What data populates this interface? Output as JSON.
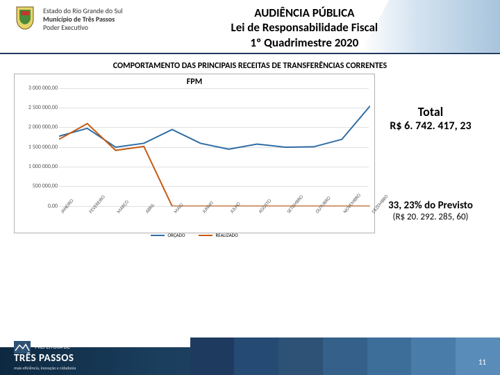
{
  "header": {
    "org_line1": "Estado do Rio Grande do Sul",
    "org_line2": "Município de Três Passos",
    "org_line3": "Poder Executivo",
    "title1": "AUDIÊNCIA PÚBLICA",
    "title2": "Lei de Responsabilidade Fiscal",
    "title3": "1º Quadrimestre 2020"
  },
  "section_title": "COMPORTAMENTO DAS PRINCIPAIS RECEITAS DE TRANSFERÊNCIAS CORRENTES",
  "chart": {
    "type": "line",
    "title": "FPM",
    "title_fontsize": 12,
    "label_fontsize": 8,
    "background_color": "#ffffff",
    "grid_color": "#e0e0e0",
    "categories": [
      "JANEIRO",
      "FEVEREIRO",
      "MARÇO",
      "ABRIL",
      "MAIO",
      "JUNHO",
      "JULHO",
      "AGOSTO",
      "SETEMBRO",
      "OUTUBRO",
      "NOVEMBRO",
      "DEZEMBRO"
    ],
    "ylim": [
      0,
      3000000
    ],
    "ytick_step": 500000,
    "ytick_labels": [
      "0,00",
      "500 000,00",
      "1 000 000,00",
      "1 500 000,00",
      "2 000 000,00",
      "2 500 000,00",
      "3 000 000,00"
    ],
    "series": [
      {
        "name": "ORÇADO",
        "color": "#2e6ca4",
        "line_width": 2,
        "values": [
          1780000,
          1980000,
          1500000,
          1600000,
          1950000,
          1600000,
          1450000,
          1580000,
          1500000,
          1510000,
          1700000,
          2550000
        ]
      },
      {
        "name": "REALIZADO",
        "color": "#c55a11",
        "line_width": 2,
        "values": [
          1700000,
          2100000,
          1420000,
          1520000,
          0,
          0,
          0,
          0,
          0,
          0,
          0,
          0
        ]
      }
    ],
    "legend_items": [
      "ORÇADO",
      "REALIZADO"
    ]
  },
  "totals": {
    "label": "Total",
    "value": "R$ 6. 742. 417, 23",
    "pct": "33, 23% do Previsto",
    "pct_value": "(R$ 20. 292. 285, 60)"
  },
  "footer": {
    "brand": "TRÊS PASSOS",
    "tagline": "mais eficiência, inovação e cidadania",
    "page": "11",
    "stripe_colors": [
      "#1f3a5f",
      "#254a74",
      "#2d5275",
      "#34608a",
      "#3d6e9a",
      "#4a7caa",
      "#5a8cb9"
    ]
  }
}
